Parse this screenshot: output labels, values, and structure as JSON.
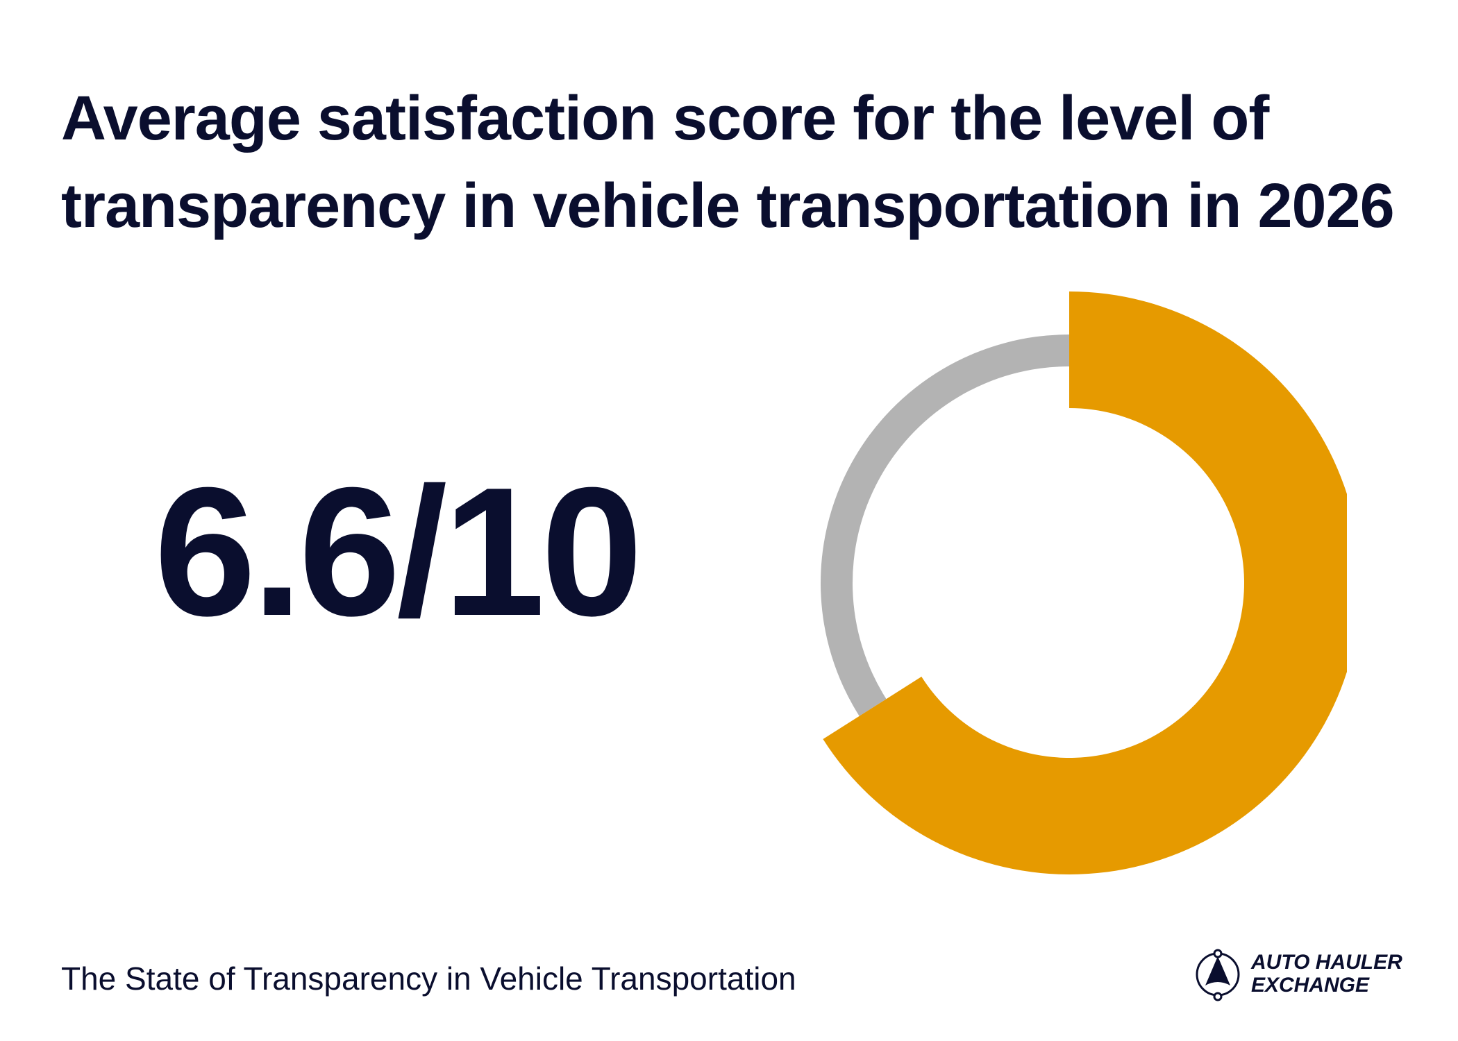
{
  "title": {
    "line1": "Average satisfaction score for the level of",
    "line2": "transparency in vehicle transportation in 2026"
  },
  "score": {
    "text": "6.6/10"
  },
  "chart_data": {
    "type": "pie",
    "variant": "donut-gauge",
    "value": 6.6,
    "max": 10,
    "slices": [
      {
        "label": "score",
        "value": 6.6,
        "color": "#e69a00"
      },
      {
        "label": "remaining",
        "value": 3.4,
        "color": "#b3b3b3"
      }
    ],
    "title": "Average satisfaction score for the level of transparency in vehicle transportation in 2026",
    "legend": "none"
  },
  "footer": {
    "source": "The State of Transparency in Vehicle Transportation"
  },
  "brand": {
    "name_line1": "AUTO HAULER",
    "name_line2": "EXCHANGE",
    "icon": "auto-hauler-exchange-logo-icon"
  },
  "colors": {
    "text": "#0a0e2e",
    "accent": "#e69a00",
    "track": "#b3b3b3",
    "background": "#ffffff"
  }
}
